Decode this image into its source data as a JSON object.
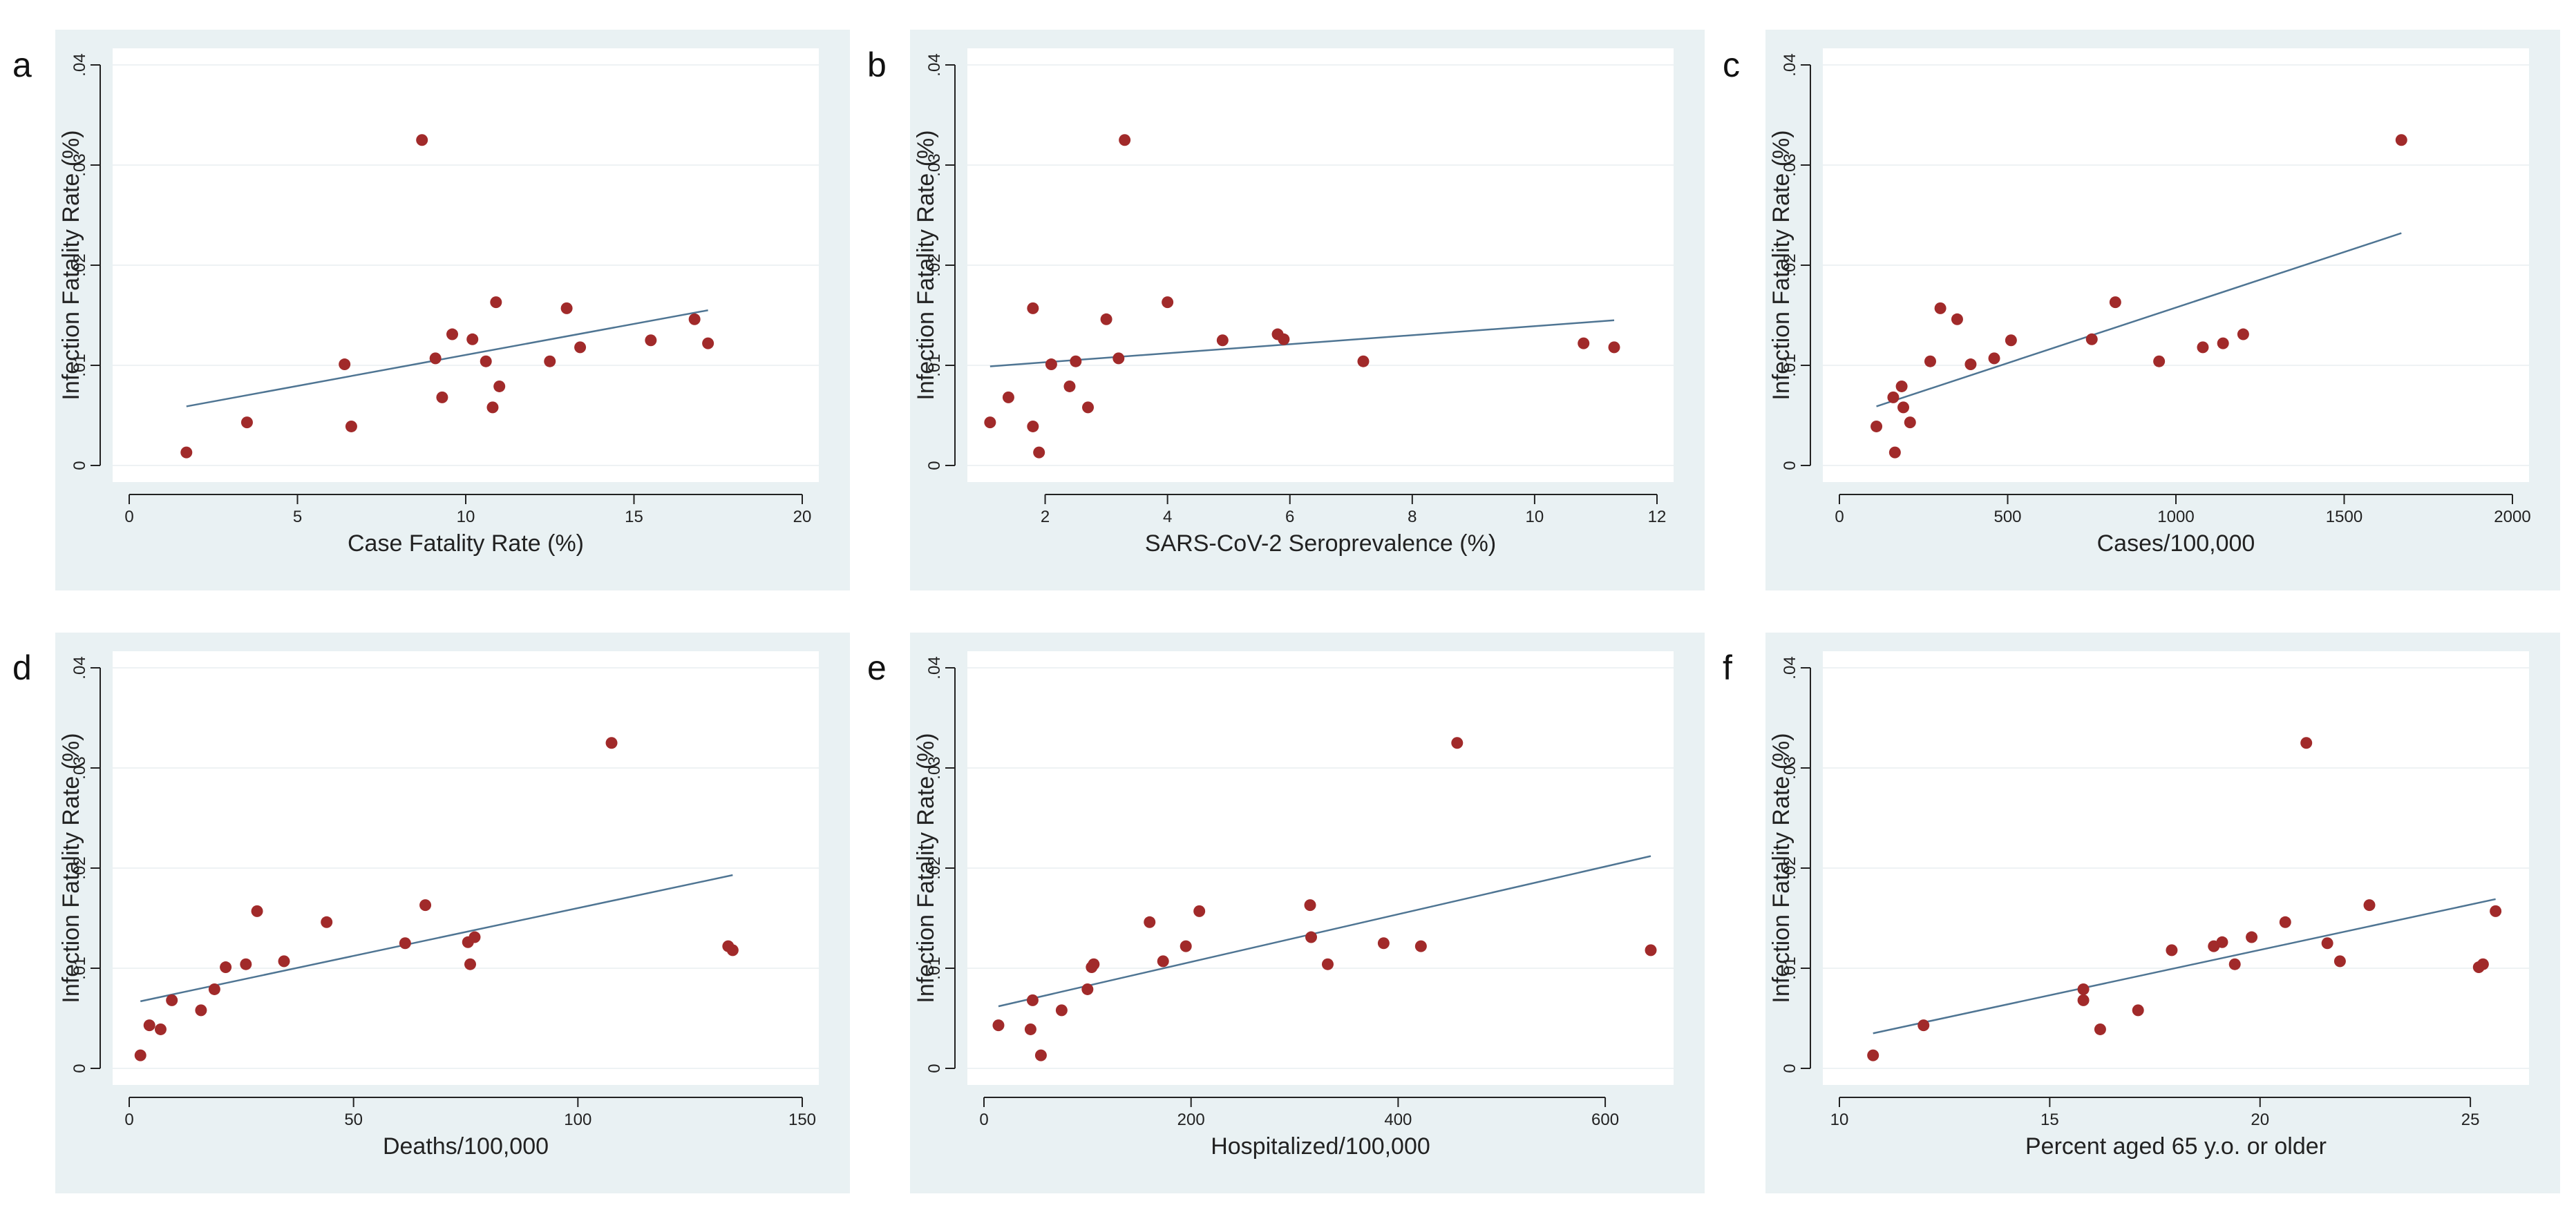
{
  "colors": {
    "panel_background": "#e9f1f3",
    "plot_background": "#ffffff",
    "marker": "#a12a2a",
    "fit_line": "#4f7593"
  },
  "chart_data": [
    {
      "panel": "a",
      "type": "scatter",
      "xlabel": "Case Fatality Rate (%)",
      "ylabel": "Infection Fatality Rate (%)",
      "xlim": [
        0,
        20
      ],
      "ylim": [
        0,
        0.04
      ],
      "xticks": [
        0,
        5,
        10,
        15,
        20
      ],
      "xtick_labels": [
        "0",
        "5",
        "10",
        "15",
        "20"
      ],
      "yticks": [
        0,
        0.01,
        0.02,
        0.03,
        0.04
      ],
      "ytick_labels": [
        "0",
        ".01",
        ".02",
        ".03",
        ".04"
      ],
      "grid": true,
      "points": [
        [
          1.7,
          0.0013
        ],
        [
          3.5,
          0.0043
        ],
        [
          6.4,
          0.0101
        ],
        [
          6.6,
          0.0039
        ],
        [
          8.7,
          0.0325
        ],
        [
          9.1,
          0.0107
        ],
        [
          9.3,
          0.0068
        ],
        [
          9.6,
          0.0131
        ],
        [
          10.2,
          0.0126
        ],
        [
          10.6,
          0.0104
        ],
        [
          10.8,
          0.0058
        ],
        [
          10.9,
          0.0163
        ],
        [
          11.0,
          0.0079
        ],
        [
          12.5,
          0.0104
        ],
        [
          13.0,
          0.0157
        ],
        [
          13.4,
          0.0118
        ],
        [
          15.5,
          0.0125
        ],
        [
          16.8,
          0.0146
        ],
        [
          17.2,
          0.0122
        ]
      ],
      "fit_line": [
        [
          1.7,
          0.0059
        ],
        [
          17.2,
          0.0155
        ]
      ]
    },
    {
      "panel": "b",
      "type": "scatter",
      "xlabel": "SARS-CoV-2 Seroprevalence (%)",
      "ylabel": "Infection Fatality Rate (%)",
      "xlim": [
        1,
        12
      ],
      "ylim": [
        0,
        0.04
      ],
      "xticks": [
        2,
        4,
        6,
        8,
        10,
        12
      ],
      "xtick_labels": [
        "2",
        "4",
        "6",
        "8",
        "10",
        "12"
      ],
      "yticks": [
        0,
        0.01,
        0.02,
        0.03,
        0.04
      ],
      "ytick_labels": [
        "0",
        ".01",
        ".02",
        ".03",
        ".04"
      ],
      "grid": true,
      "points": [
        [
          1.1,
          0.0043
        ],
        [
          1.4,
          0.0068
        ],
        [
          1.8,
          0.0157
        ],
        [
          1.8,
          0.0039
        ],
        [
          1.9,
          0.0013
        ],
        [
          2.1,
          0.0101
        ],
        [
          2.4,
          0.0079
        ],
        [
          2.5,
          0.0104
        ],
        [
          2.7,
          0.0058
        ],
        [
          3.0,
          0.0146
        ],
        [
          3.2,
          0.0107
        ],
        [
          3.3,
          0.0325
        ],
        [
          4.0,
          0.0163
        ],
        [
          4.9,
          0.0125
        ],
        [
          5.8,
          0.0131
        ],
        [
          5.9,
          0.0126
        ],
        [
          7.2,
          0.0104
        ],
        [
          10.8,
          0.0122
        ],
        [
          11.3,
          0.0118
        ]
      ],
      "fit_line": [
        [
          1.1,
          0.0099
        ],
        [
          11.3,
          0.0145
        ]
      ]
    },
    {
      "panel": "c",
      "type": "scatter",
      "xlabel": "Cases/100,000",
      "ylabel": "Infection Fatality Rate (%)",
      "xlim": [
        0,
        2000
      ],
      "ylim": [
        0,
        0.04
      ],
      "xticks": [
        0,
        500,
        1000,
        1500,
        2000
      ],
      "xtick_labels": [
        "0",
        "500",
        "1000",
        "1500",
        "2000"
      ],
      "yticks": [
        0,
        0.01,
        0.02,
        0.03,
        0.04
      ],
      "ytick_labels": [
        "0",
        ".01",
        ".02",
        ".03",
        ".04"
      ],
      "grid": true,
      "points": [
        [
          110,
          0.0039
        ],
        [
          160,
          0.0068
        ],
        [
          165,
          0.0013
        ],
        [
          185,
          0.0079
        ],
        [
          190,
          0.0058
        ],
        [
          210,
          0.0043
        ],
        [
          270,
          0.0104
        ],
        [
          300,
          0.0157
        ],
        [
          350,
          0.0146
        ],
        [
          390,
          0.0101
        ],
        [
          460,
          0.0107
        ],
        [
          510,
          0.0125
        ],
        [
          750,
          0.0126
        ],
        [
          820,
          0.0163
        ],
        [
          950,
          0.0104
        ],
        [
          1080,
          0.0118
        ],
        [
          1140,
          0.0122
        ],
        [
          1200,
          0.0131
        ],
        [
          1670,
          0.0325
        ]
      ],
      "fit_line": [
        [
          110,
          0.0059
        ],
        [
          1670,
          0.0232
        ]
      ]
    },
    {
      "panel": "d",
      "type": "scatter",
      "xlabel": "Deaths/100,000",
      "ylabel": "Infection Fatality Rate (%)",
      "xlim": [
        0,
        150
      ],
      "ylim": [
        0,
        0.04
      ],
      "xticks": [
        0,
        50,
        100,
        150
      ],
      "xtick_labels": [
        "0",
        "50",
        "100",
        "150"
      ],
      "yticks": [
        0,
        0.01,
        0.02,
        0.03,
        0.04
      ],
      "ytick_labels": [
        "0",
        ".01",
        ".02",
        ".03",
        ".04"
      ],
      "grid": true,
      "points": [
        [
          2.5,
          0.0013
        ],
        [
          4.5,
          0.0043
        ],
        [
          7,
          0.0039
        ],
        [
          9.5,
          0.0068
        ],
        [
          16,
          0.0058
        ],
        [
          19,
          0.0079
        ],
        [
          21.5,
          0.0101
        ],
        [
          26,
          0.0104
        ],
        [
          28.5,
          0.0157
        ],
        [
          34.5,
          0.0107
        ],
        [
          44,
          0.0146
        ],
        [
          61.5,
          0.0125
        ],
        [
          66,
          0.0163
        ],
        [
          75.5,
          0.0126
        ],
        [
          76,
          0.0104
        ],
        [
          77,
          0.0131
        ],
        [
          107.5,
          0.0325
        ],
        [
          133.5,
          0.0122
        ],
        [
          134.5,
          0.0118
        ]
      ],
      "fit_line": [
        [
          2.5,
          0.0067
        ],
        [
          134.5,
          0.0193
        ]
      ]
    },
    {
      "panel": "e",
      "type": "scatter",
      "xlabel": "Hospitalized/100,000",
      "ylabel": "Infection Fatality Rate (%)",
      "xlim": [
        0,
        650
      ],
      "ylim": [
        0,
        0.04
      ],
      "xticks": [
        0,
        200,
        400,
        600
      ],
      "xtick_labels": [
        "0",
        "200",
        "400",
        "600"
      ],
      "yticks": [
        0,
        0.01,
        0.02,
        0.03,
        0.04
      ],
      "ytick_labels": [
        "0",
        ".01",
        ".02",
        ".03",
        ".04"
      ],
      "grid": true,
      "points": [
        [
          14,
          0.0043
        ],
        [
          45,
          0.0039
        ],
        [
          47,
          0.0068
        ],
        [
          55,
          0.0013
        ],
        [
          75,
          0.0058
        ],
        [
          100,
          0.0079
        ],
        [
          104,
          0.0101
        ],
        [
          106,
          0.0104
        ],
        [
          160,
          0.0146
        ],
        [
          173,
          0.0107
        ],
        [
          195,
          0.0122
        ],
        [
          208,
          0.0157
        ],
        [
          315,
          0.0163
        ],
        [
          316,
          0.0131
        ],
        [
          332,
          0.0104
        ],
        [
          386,
          0.0125
        ],
        [
          422,
          0.0122
        ],
        [
          457,
          0.0325
        ],
        [
          644,
          0.0118
        ]
      ],
      "fit_line": [
        [
          14,
          0.0062
        ],
        [
          644,
          0.0212
        ]
      ]
    },
    {
      "panel": "f",
      "type": "scatter",
      "xlabel": "Percent aged 65 y.o. or older",
      "ylabel": "Infection Fatality Rate (%)",
      "xlim": [
        10,
        26
      ],
      "ylim": [
        0,
        0.04
      ],
      "xticks": [
        10,
        15,
        20,
        25
      ],
      "xtick_labels": [
        "10",
        "15",
        "20",
        "25"
      ],
      "yticks": [
        0,
        0.01,
        0.02,
        0.03,
        0.04
      ],
      "ytick_labels": [
        "0",
        ".01",
        ".02",
        ".03",
        ".04"
      ],
      "grid": true,
      "points": [
        [
          10.8,
          0.0013
        ],
        [
          12.0,
          0.0043
        ],
        [
          15.8,
          0.0068
        ],
        [
          15.8,
          0.0079
        ],
        [
          16.2,
          0.0039
        ],
        [
          17.1,
          0.0058
        ],
        [
          17.9,
          0.0118
        ],
        [
          18.9,
          0.0122
        ],
        [
          19.1,
          0.0126
        ],
        [
          19.4,
          0.0104
        ],
        [
          19.8,
          0.0131
        ],
        [
          20.6,
          0.0146
        ],
        [
          21.1,
          0.0325
        ],
        [
          21.6,
          0.0125
        ],
        [
          21.9,
          0.0107
        ],
        [
          22.6,
          0.0163
        ],
        [
          25.2,
          0.0101
        ],
        [
          25.3,
          0.0104
        ],
        [
          25.6,
          0.0157
        ]
      ],
      "fit_line": [
        [
          10.8,
          0.0035
        ],
        [
          25.6,
          0.0169
        ]
      ]
    }
  ]
}
